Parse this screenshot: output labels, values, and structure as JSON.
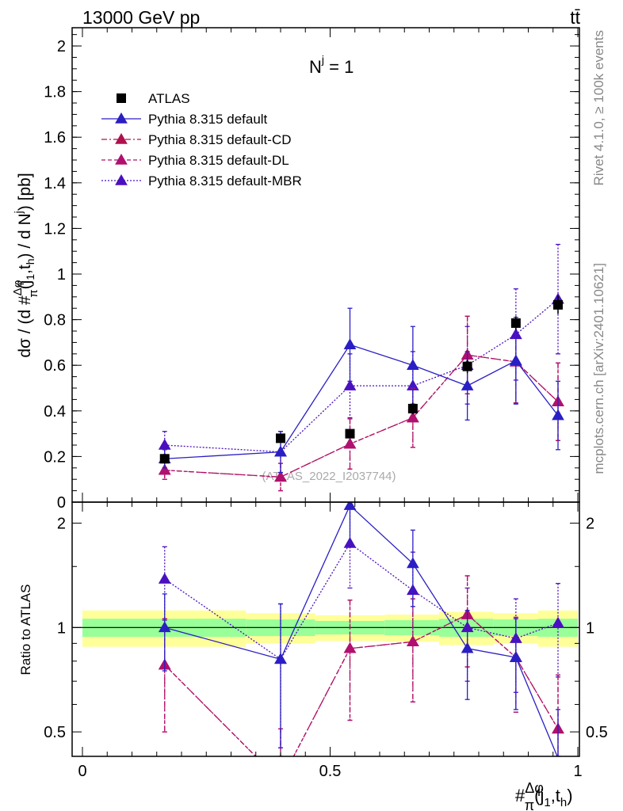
{
  "header": {
    "left": "13000 GeV pp",
    "right": "tt̄"
  },
  "side_labels": {
    "rivet": "Rivet 4.1.0, ≥ 100k events",
    "mcplots": "mcplots.cern.ch [arXiv:2401.10621]"
  },
  "watermark": "(ATLAS_2022_I2037744)",
  "annotation": {
    "main": "N",
    "sup": "j",
    "rest": " = 1"
  },
  "colors": {
    "atlas": "#000000",
    "default": "#2a1fc4",
    "cd": "#b0104f",
    "dl": "#b0106f",
    "mbr": "#4a10c0",
    "band_inner": "#99ff99",
    "band_outer": "#ffff99"
  },
  "chart_data": [
    {
      "type": "scatter",
      "panel": "main",
      "ylabel": "dσ / (d #Δφ/π(j1,th) / d N^j) [pb]",
      "ylabel_parts": {
        "pre": "dσ / (d #",
        "num": "Δφ",
        "den": "π",
        "args": "(j",
        "s1": "1",
        "comma": ",t",
        "s2": "h",
        "mid": ") / d N",
        "sup": "j",
        "post": ") [pb]"
      },
      "xlim": [
        0,
        1
      ],
      "ylim": [
        0,
        2.08
      ],
      "yticks": [
        0,
        0.2,
        0.4,
        0.6,
        0.8,
        1,
        1.2,
        1.4,
        1.6,
        1.8,
        2
      ],
      "ytick_labels": [
        "0",
        "0.2",
        "0.4",
        "0.6",
        "0.8",
        "1",
        "1.2",
        "1.4",
        "1.6",
        "1.8",
        "2"
      ],
      "x": [
        0.166,
        0.4,
        0.54,
        0.667,
        0.777,
        0.875,
        0.96
      ],
      "legend": [
        "ATLAS",
        "Pythia 8.315 default",
        "Pythia 8.315 default-CD",
        "Pythia 8.315 default-DL",
        "Pythia 8.315 default-MBR"
      ],
      "series": [
        {
          "name": "ATLAS",
          "style": "square",
          "values": [
            0.19,
            0.28,
            0.3,
            0.41,
            0.595,
            0.785,
            0.865
          ],
          "err": [
            0.02,
            0.02,
            0.02,
            0.025,
            0.03,
            0.03,
            0.04
          ]
        },
        {
          "name": "Pythia 8.315 default",
          "style": "solid",
          "values": [
            0.19,
            0.22,
            0.69,
            0.6,
            0.51,
            0.62,
            0.38
          ],
          "err": [
            0.04,
            0.09,
            0.16,
            0.17,
            0.15,
            0.19,
            0.15
          ]
        },
        {
          "name": "Pythia 8.315 default-CD",
          "style": "dashdot",
          "values": [
            0.14,
            0.11,
            0.255,
            0.37,
            0.645,
            0.615,
            0.44
          ],
          "err": [
            0.04,
            0.06,
            0.11,
            0.13,
            0.17,
            0.18,
            0.17
          ]
        },
        {
          "name": "Pythia 8.315 default-DL",
          "style": "dashed",
          "values": [
            0.14,
            0.11,
            0.255,
            0.37,
            0.645,
            0.615,
            0.44
          ],
          "err": [
            0.04,
            0.06,
            0.11,
            0.13,
            0.17,
            0.18,
            0.17
          ]
        },
        {
          "name": "Pythia 8.315 default-MBR",
          "style": "dotted",
          "values": [
            0.25,
            0.22,
            0.51,
            0.51,
            0.6,
            0.735,
            0.89
          ],
          "err": [
            0.06,
            0.09,
            0.14,
            0.15,
            0.17,
            0.2,
            0.24
          ]
        }
      ]
    },
    {
      "type": "scatter",
      "panel": "ratio",
      "ylabel": "Ratio to ATLAS",
      "xlabel": "#Δφ/π(j1,th)",
      "xlabel_parts": {
        "pre": "#",
        "num": "Δφ",
        "den": "π",
        "args": "(j",
        "s1": "1",
        "comma": ",t",
        "s2": "h",
        "post": ")"
      },
      "xlim": [
        0,
        1
      ],
      "ylim": [
        0.425,
        2.3
      ],
      "yticks": [
        0.5,
        1,
        2
      ],
      "ytick_labels": [
        "0.5",
        "1",
        "2"
      ],
      "xticks": [
        0,
        0.5,
        1
      ],
      "xtick_labels": [
        "0",
        "0.5",
        "1"
      ],
      "x": [
        0.166,
        0.4,
        0.54,
        0.667,
        0.777,
        0.875,
        0.96
      ],
      "band_bins": [
        0,
        0.33,
        0.47,
        0.61,
        0.72,
        0.83,
        0.92,
        1.0
      ],
      "band_inner": [
        0.06,
        0.055,
        0.045,
        0.05,
        0.06,
        0.055,
        0.06
      ],
      "band_outer": [
        0.12,
        0.1,
        0.085,
        0.09,
        0.11,
        0.1,
        0.12
      ],
      "series": [
        {
          "name": "Pythia 8.315 default",
          "style": "solid",
          "values": [
            1.0,
            0.81,
            2.25,
            1.53,
            0.87,
            0.82,
            0.42
          ],
          "err": [
            0.25,
            0.36,
            0.48,
            0.38,
            0.25,
            0.24,
            0.16
          ]
        },
        {
          "name": "Pythia 8.315 default-CD",
          "style": "dashdot",
          "values": [
            0.78,
            0.36,
            0.87,
            0.91,
            1.09,
            0.82,
            0.51
          ],
          "err": [
            0.28,
            0.15,
            0.33,
            0.3,
            0.32,
            0.25,
            0.22
          ]
        },
        {
          "name": "Pythia 8.315 default-DL",
          "style": "dashed",
          "values": [
            0.78,
            0.36,
            0.87,
            0.91,
            1.09,
            0.82,
            0.51
          ],
          "err": [
            0.28,
            0.15,
            0.33,
            0.3,
            0.32,
            0.25,
            0.22
          ]
        },
        {
          "name": "Pythia 8.315 default-MBR",
          "style": "dotted",
          "values": [
            1.38,
            0.81,
            1.75,
            1.28,
            1.0,
            0.93,
            1.03
          ],
          "err": [
            0.33,
            0.36,
            0.45,
            0.37,
            0.3,
            0.28,
            0.31
          ]
        }
      ]
    }
  ]
}
